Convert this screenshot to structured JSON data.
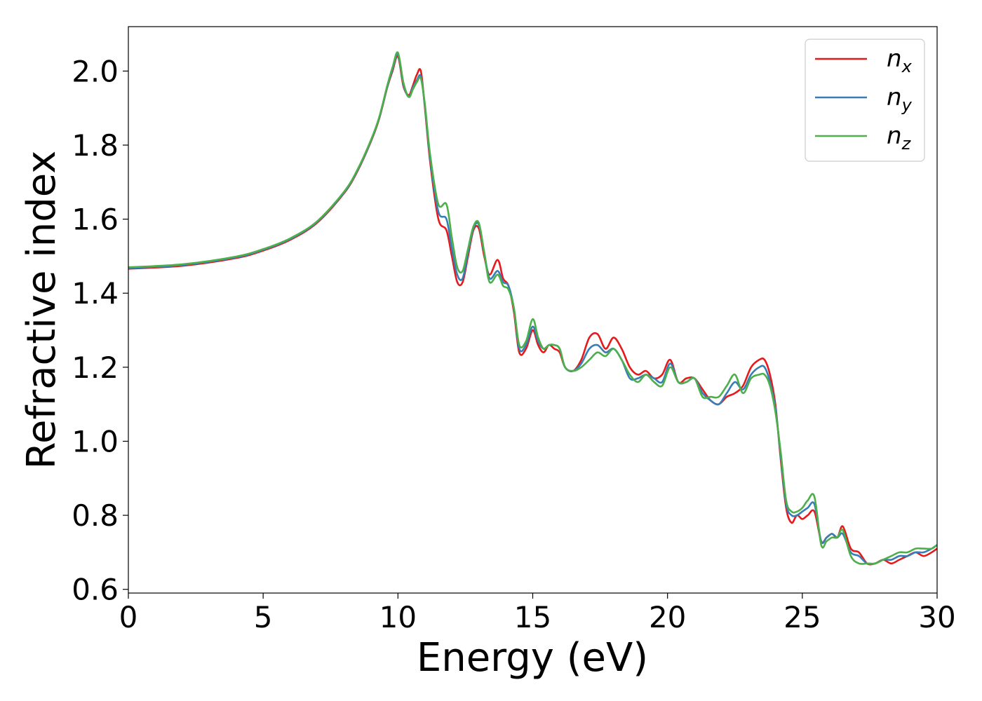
{
  "chart_data": {
    "type": "line",
    "title": "",
    "xlabel": "Energy (eV)",
    "ylabel": "Refractive index",
    "xlim": [
      0,
      30
    ],
    "ylim": [
      0.59,
      2.12
    ],
    "xticks": [
      0,
      5,
      10,
      15,
      20,
      25,
      30
    ],
    "xtick_labels": [
      "0",
      "5",
      "10",
      "15",
      "20",
      "25",
      "30"
    ],
    "yticks": [
      0.6,
      0.8,
      1.0,
      1.2,
      1.4,
      1.6,
      1.8,
      2.0
    ],
    "ytick_labels": [
      "0.6",
      "0.8",
      "1.0",
      "1.2",
      "1.4",
      "1.6",
      "1.8",
      "2.0"
    ],
    "grid": false,
    "legend_position": "top-right",
    "series": [
      {
        "name": "n_x",
        "label_base": "n",
        "label_sub": "x",
        "color": "#e41a1c",
        "x": [
          0,
          2,
          4,
          5,
          6,
          7,
          8,
          8.5,
          9,
          9.3,
          9.6,
          9.8,
          10,
          10.2,
          10.4,
          10.55,
          10.7,
          10.85,
          11,
          11.2,
          11.5,
          11.8,
          12,
          12.2,
          12.4,
          12.6,
          12.8,
          13,
          13.2,
          13.4,
          13.7,
          13.9,
          14.1,
          14.3,
          14.5,
          14.75,
          15,
          15.2,
          15.4,
          15.6,
          15.8,
          16,
          16.2,
          16.5,
          16.8,
          17.1,
          17.4,
          17.7,
          18,
          18.3,
          18.6,
          18.9,
          19.2,
          19.5,
          19.8,
          20.1,
          20.4,
          20.7,
          21,
          21.3,
          21.6,
          21.9,
          22.2,
          22.5,
          22.8,
          23.1,
          23.4,
          23.6,
          23.8,
          24,
          24.2,
          24.4,
          24.6,
          24.8,
          25,
          25.2,
          25.45,
          25.7,
          25.9,
          26.1,
          26.3,
          26.5,
          26.8,
          27.1,
          27.4,
          27.7,
          28,
          28.3,
          28.6,
          28.9,
          29.2,
          29.5,
          29.8,
          30
        ],
        "y": [
          1.466,
          1.474,
          1.495,
          1.515,
          1.544,
          1.59,
          1.67,
          1.73,
          1.81,
          1.87,
          1.955,
          2.0,
          2.04,
          1.96,
          1.935,
          1.96,
          1.99,
          2.0,
          1.9,
          1.75,
          1.6,
          1.57,
          1.5,
          1.43,
          1.43,
          1.5,
          1.57,
          1.575,
          1.5,
          1.45,
          1.49,
          1.44,
          1.42,
          1.35,
          1.24,
          1.25,
          1.3,
          1.26,
          1.24,
          1.26,
          1.25,
          1.24,
          1.2,
          1.19,
          1.22,
          1.28,
          1.29,
          1.25,
          1.28,
          1.25,
          1.2,
          1.18,
          1.19,
          1.17,
          1.18,
          1.22,
          1.16,
          1.17,
          1.17,
          1.14,
          1.11,
          1.1,
          1.12,
          1.13,
          1.15,
          1.2,
          1.22,
          1.22,
          1.18,
          1.1,
          0.95,
          0.82,
          0.78,
          0.8,
          0.79,
          0.8,
          0.81,
          0.73,
          0.74,
          0.75,
          0.74,
          0.77,
          0.71,
          0.7,
          0.67,
          0.67,
          0.68,
          0.67,
          0.68,
          0.69,
          0.7,
          0.69,
          0.7,
          0.71
        ]
      },
      {
        "name": "n_y",
        "label_base": "n",
        "label_sub": "y",
        "color": "#377eb8",
        "x": [
          0,
          2,
          4,
          5,
          6,
          7,
          8,
          8.5,
          9,
          9.3,
          9.6,
          9.8,
          10,
          10.2,
          10.4,
          10.55,
          10.7,
          10.85,
          11,
          11.2,
          11.5,
          11.8,
          12,
          12.2,
          12.4,
          12.6,
          12.8,
          13,
          13.2,
          13.4,
          13.7,
          13.9,
          14.1,
          14.3,
          14.5,
          14.75,
          15,
          15.2,
          15.4,
          15.6,
          15.8,
          16,
          16.2,
          16.5,
          16.8,
          17.1,
          17.4,
          17.7,
          18,
          18.3,
          18.6,
          18.9,
          19.2,
          19.5,
          19.8,
          20.1,
          20.4,
          20.7,
          21,
          21.3,
          21.6,
          21.9,
          22.2,
          22.5,
          22.8,
          23.1,
          23.4,
          23.6,
          23.8,
          24,
          24.2,
          24.4,
          24.6,
          24.8,
          25,
          25.2,
          25.45,
          25.7,
          25.9,
          26.1,
          26.3,
          26.5,
          26.8,
          27.1,
          27.4,
          27.7,
          28,
          28.3,
          28.6,
          28.9,
          29.2,
          29.5,
          29.8,
          30
        ],
        "y": [
          1.468,
          1.476,
          1.497,
          1.517,
          1.546,
          1.592,
          1.672,
          1.732,
          1.812,
          1.872,
          1.957,
          2.005,
          2.045,
          1.965,
          1.93,
          1.955,
          1.975,
          1.985,
          1.905,
          1.76,
          1.62,
          1.6,
          1.52,
          1.45,
          1.44,
          1.51,
          1.575,
          1.585,
          1.51,
          1.44,
          1.46,
          1.43,
          1.42,
          1.36,
          1.25,
          1.26,
          1.31,
          1.27,
          1.25,
          1.26,
          1.26,
          1.25,
          1.2,
          1.19,
          1.21,
          1.25,
          1.26,
          1.24,
          1.25,
          1.22,
          1.17,
          1.17,
          1.18,
          1.17,
          1.16,
          1.21,
          1.16,
          1.16,
          1.17,
          1.13,
          1.11,
          1.1,
          1.13,
          1.16,
          1.14,
          1.18,
          1.2,
          1.2,
          1.16,
          1.09,
          0.96,
          0.83,
          0.8,
          0.8,
          0.81,
          0.82,
          0.83,
          0.73,
          0.74,
          0.75,
          0.74,
          0.75,
          0.7,
          0.69,
          0.67,
          0.67,
          0.68,
          0.68,
          0.69,
          0.69,
          0.7,
          0.7,
          0.71,
          0.72
        ]
      },
      {
        "name": "n_z",
        "label_base": "n",
        "label_sub": "z",
        "color": "#4daf4a",
        "x": [
          0,
          2,
          4,
          5,
          6,
          7,
          8,
          8.5,
          9,
          9.3,
          9.6,
          9.8,
          10,
          10.2,
          10.4,
          10.55,
          10.7,
          10.85,
          11,
          11.2,
          11.5,
          11.8,
          12,
          12.2,
          12.4,
          12.6,
          12.8,
          13,
          13.2,
          13.4,
          13.7,
          13.9,
          14.1,
          14.3,
          14.5,
          14.75,
          15,
          15.2,
          15.4,
          15.6,
          15.8,
          16,
          16.2,
          16.5,
          16.8,
          17.1,
          17.4,
          17.7,
          18,
          18.3,
          18.6,
          18.9,
          19.2,
          19.5,
          19.8,
          20.1,
          20.4,
          20.7,
          21,
          21.3,
          21.6,
          21.9,
          22.2,
          22.5,
          22.8,
          23.1,
          23.4,
          23.6,
          23.8,
          24,
          24.2,
          24.4,
          24.6,
          24.8,
          25,
          25.2,
          25.45,
          25.7,
          25.9,
          26.1,
          26.3,
          26.5,
          26.8,
          27.1,
          27.4,
          27.7,
          28,
          28.3,
          28.6,
          28.9,
          29.2,
          29.5,
          29.8,
          30
        ],
        "y": [
          1.47,
          1.478,
          1.499,
          1.519,
          1.548,
          1.594,
          1.674,
          1.734,
          1.814,
          1.874,
          1.96,
          2.01,
          2.05,
          1.97,
          1.93,
          1.95,
          1.97,
          1.98,
          1.91,
          1.77,
          1.64,
          1.64,
          1.55,
          1.47,
          1.46,
          1.52,
          1.58,
          1.59,
          1.51,
          1.43,
          1.45,
          1.42,
          1.41,
          1.36,
          1.26,
          1.27,
          1.33,
          1.28,
          1.25,
          1.26,
          1.26,
          1.25,
          1.2,
          1.19,
          1.2,
          1.22,
          1.24,
          1.23,
          1.25,
          1.22,
          1.18,
          1.16,
          1.18,
          1.16,
          1.15,
          1.2,
          1.16,
          1.16,
          1.17,
          1.12,
          1.12,
          1.12,
          1.15,
          1.18,
          1.13,
          1.17,
          1.18,
          1.18,
          1.15,
          1.08,
          0.97,
          0.84,
          0.81,
          0.81,
          0.82,
          0.84,
          0.85,
          0.72,
          0.73,
          0.74,
          0.74,
          0.76,
          0.69,
          0.67,
          0.67,
          0.67,
          0.68,
          0.69,
          0.7,
          0.7,
          0.71,
          0.71,
          0.71,
          0.72
        ]
      }
    ]
  }
}
